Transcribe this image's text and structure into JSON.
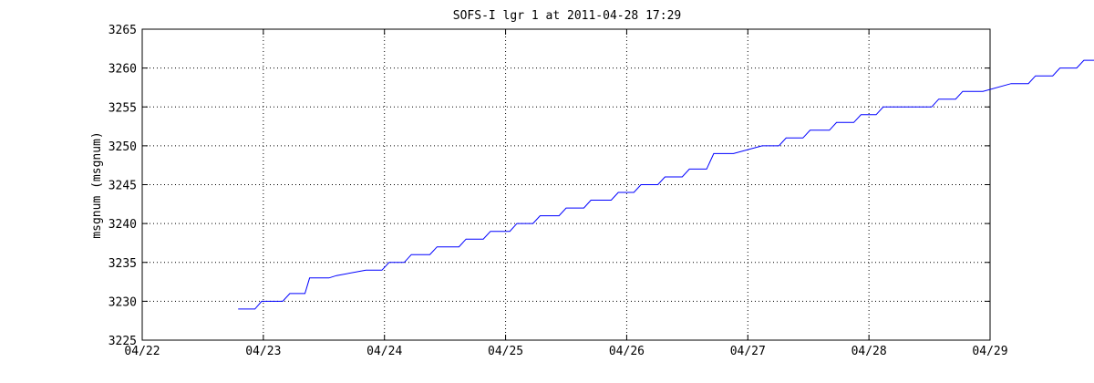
{
  "chart_data": {
    "type": "line",
    "title": "SOFS-I lgr 1 at 2011-04-28 17:29",
    "xlabel": "",
    "ylabel": "msgnum (msgnum)",
    "x_ticks": [
      "04/22",
      "04/23",
      "04/24",
      "04/25",
      "04/26",
      "04/27",
      "04/28",
      "04/29"
    ],
    "y_ticks": [
      "3225",
      "3230",
      "3235",
      "3240",
      "3245",
      "3250",
      "3255",
      "3260",
      "3265"
    ],
    "xlim": [
      "2011-04-22",
      "2011-04-29"
    ],
    "ylim": [
      3225,
      3265
    ],
    "grid": true,
    "series": [
      {
        "color": "#0000ff",
        "points": [
          [
            "2011-04-22 19:00",
            3229
          ],
          [
            "2011-04-22 22:20",
            3229
          ],
          [
            "2011-04-22 23:40",
            3230
          ],
          [
            "2011-04-23 03:50",
            3230
          ],
          [
            "2011-04-23 05:15",
            3231
          ],
          [
            "2011-04-23 08:15",
            3231
          ],
          [
            "2011-04-23 09:10",
            3233
          ],
          [
            "2011-04-23 13:00",
            3233
          ],
          [
            "2011-04-23 14:30",
            3233.3
          ],
          [
            "2011-04-23 20:20",
            3234
          ],
          [
            "2011-04-23 23:30",
            3234
          ],
          [
            "2011-04-24 00:55",
            3235
          ],
          [
            "2011-04-24 03:55",
            3235
          ],
          [
            "2011-04-24 05:20",
            3236
          ],
          [
            "2011-04-24 09:00",
            3236
          ],
          [
            "2011-04-24 10:25",
            3237
          ],
          [
            "2011-04-24 14:45",
            3237
          ],
          [
            "2011-04-24 16:10",
            3238
          ],
          [
            "2011-04-24 19:35",
            3238
          ],
          [
            "2011-04-24 21:00",
            3239
          ],
          [
            "2011-04-25 00:50",
            3239
          ],
          [
            "2011-04-25 02:15",
            3240
          ],
          [
            "2011-04-25 05:25",
            3240
          ],
          [
            "2011-04-25 06:50",
            3241
          ],
          [
            "2011-04-25 10:35",
            3241
          ],
          [
            "2011-04-25 12:00",
            3242
          ],
          [
            "2011-04-25 15:30",
            3242
          ],
          [
            "2011-04-25 16:55",
            3243
          ],
          [
            "2011-04-25 20:55",
            3243
          ],
          [
            "2011-04-25 22:20",
            3244
          ],
          [
            "2011-04-26 01:25",
            3244
          ],
          [
            "2011-04-26 02:50",
            3245
          ],
          [
            "2011-04-26 06:10",
            3245
          ],
          [
            "2011-04-26 07:35",
            3246
          ],
          [
            "2011-04-26 11:00",
            3246
          ],
          [
            "2011-04-26 12:25",
            3247
          ],
          [
            "2011-04-26 15:50",
            3247
          ],
          [
            "2011-04-26 17:15",
            3249
          ],
          [
            "2011-04-26 21:10",
            3249
          ],
          [
            "2011-04-27 02:50",
            3250
          ],
          [
            "2011-04-27 06:10",
            3250
          ],
          [
            "2011-04-27 07:35",
            3251
          ],
          [
            "2011-04-27 10:55",
            3251
          ],
          [
            "2011-04-27 12:20",
            3252
          ],
          [
            "2011-04-27 16:10",
            3252
          ],
          [
            "2011-04-27 17:35",
            3253
          ],
          [
            "2011-04-27 21:00",
            3253
          ],
          [
            "2011-04-27 22:25",
            3254
          ],
          [
            "2011-04-28 01:25",
            3254
          ],
          [
            "2011-04-28 02:50",
            3255
          ],
          [
            "2011-04-28 12:25",
            3255
          ],
          [
            "2011-04-28 13:50",
            3256
          ],
          [
            "2011-04-28 17:10",
            3256
          ],
          [
            "2011-04-28 18:35",
            3257
          ],
          [
            "2011-04-28 22:35",
            3257
          ],
          [
            "2011-04-29 04:10",
            3258
          ],
          [
            "2011-04-29 07:35",
            3258
          ],
          [
            "2011-04-29 09:00",
            3259
          ],
          [
            "2011-04-29 12:25",
            3259
          ],
          [
            "2011-04-29 13:50",
            3260
          ],
          [
            "2011-04-29 17:10",
            3260
          ],
          [
            "2011-04-29 18:35",
            3261
          ],
          [
            "2011-04-29 21:35",
            3261
          ],
          [
            "2011-04-29 23:00",
            3262
          ],
          [
            "2011-04-30 01:25",
            3262
          ]
        ]
      }
    ]
  }
}
